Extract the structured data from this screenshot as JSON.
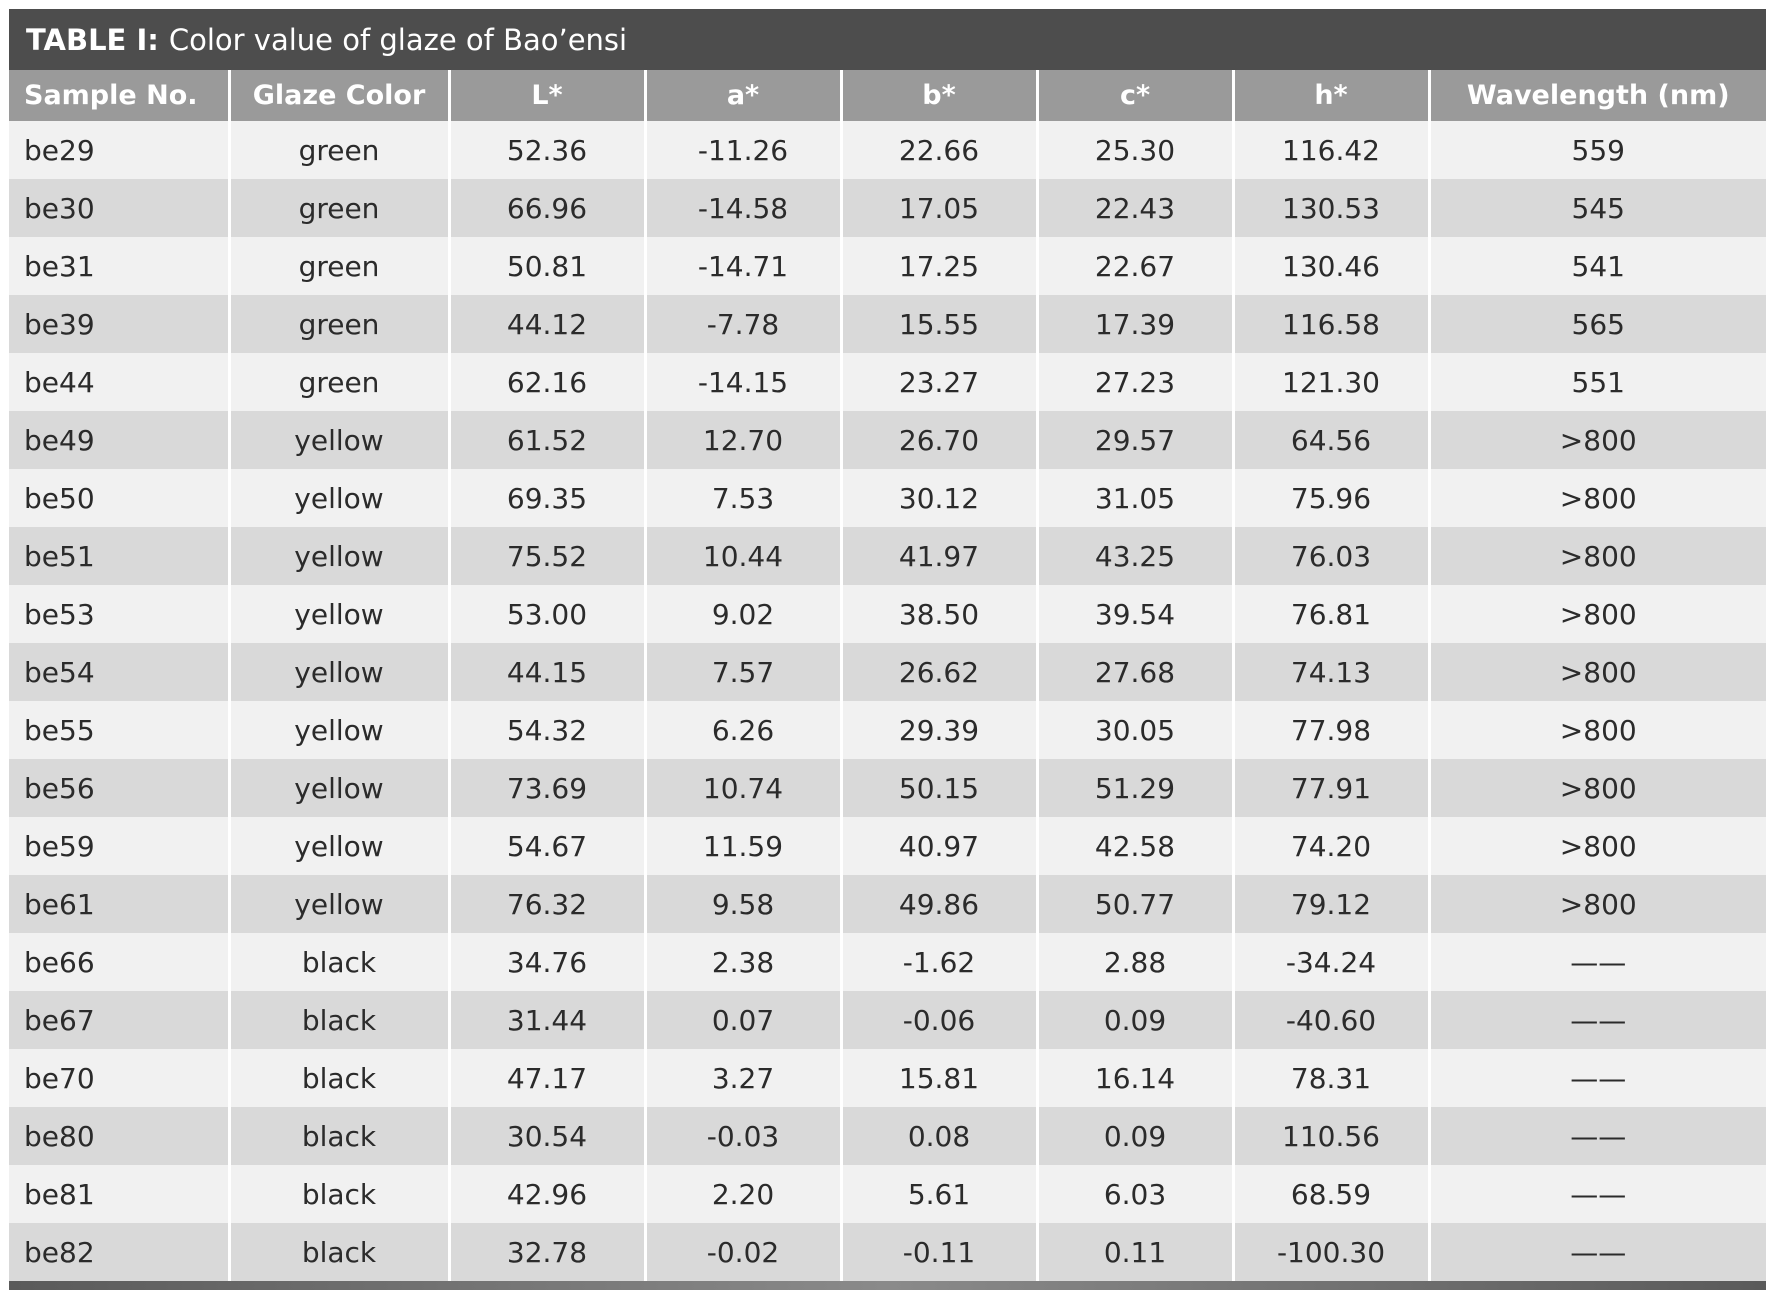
{
  "table": {
    "title_label": "TABLE I:",
    "title_text": "Color value of glaze of Bao’ensi",
    "headers": [
      "Sample No.",
      "Glaze Color",
      "L*",
      "a*",
      "b*",
      "c*",
      "h*",
      "Wavelength (nm)"
    ],
    "rows": [
      [
        "be29",
        "green",
        "52.36",
        "-11.26",
        "22.66",
        "25.30",
        "116.42",
        "559"
      ],
      [
        "be30",
        "green",
        "66.96",
        "-14.58",
        "17.05",
        "22.43",
        "130.53",
        "545"
      ],
      [
        "be31",
        "green",
        "50.81",
        "-14.71",
        "17.25",
        "22.67",
        "130.46",
        "541"
      ],
      [
        "be39",
        "green",
        "44.12",
        "-7.78",
        "15.55",
        "17.39",
        "116.58",
        "565"
      ],
      [
        "be44",
        "green",
        "62.16",
        "-14.15",
        "23.27",
        "27.23",
        "121.30",
        "551"
      ],
      [
        "be49",
        "yellow",
        "61.52",
        "12.70",
        "26.70",
        "29.57",
        "64.56",
        ">800"
      ],
      [
        "be50",
        "yellow",
        "69.35",
        "7.53",
        "30.12",
        "31.05",
        "75.96",
        ">800"
      ],
      [
        "be51",
        "yellow",
        "75.52",
        "10.44",
        "41.97",
        "43.25",
        "76.03",
        ">800"
      ],
      [
        "be53",
        "yellow",
        "53.00",
        "9.02",
        "38.50",
        "39.54",
        "76.81",
        ">800"
      ],
      [
        "be54",
        "yellow",
        "44.15",
        "7.57",
        "26.62",
        "27.68",
        "74.13",
        ">800"
      ],
      [
        "be55",
        "yellow",
        "54.32",
        "6.26",
        "29.39",
        "30.05",
        "77.98",
        ">800"
      ],
      [
        "be56",
        "yellow",
        "73.69",
        "10.74",
        "50.15",
        "51.29",
        "77.91",
        ">800"
      ],
      [
        "be59",
        "yellow",
        "54.67",
        "11.59",
        "40.97",
        "42.58",
        "74.20",
        ">800"
      ],
      [
        "be61",
        "yellow",
        "76.32",
        "9.58",
        "49.86",
        "50.77",
        "79.12",
        ">800"
      ],
      [
        "be66",
        "black",
        "34.76",
        "2.38",
        "-1.62",
        "2.88",
        "-34.24",
        "——"
      ],
      [
        "be67",
        "black",
        "31.44",
        "0.07",
        "-0.06",
        "0.09",
        "-40.60",
        "——"
      ],
      [
        "be70",
        "black",
        "47.17",
        "3.27",
        "15.81",
        "16.14",
        "78.31",
        "——"
      ],
      [
        "be80",
        "black",
        "30.54",
        "-0.03",
        "0.08",
        "0.09",
        "110.56",
        "——"
      ],
      [
        "be81",
        "black",
        "42.96",
        "2.20",
        "5.61",
        "6.03",
        "68.59",
        "——"
      ],
      [
        "be82",
        "black",
        "32.78",
        "-0.02",
        "-0.11",
        "0.11",
        "-100.30",
        "——"
      ]
    ]
  }
}
